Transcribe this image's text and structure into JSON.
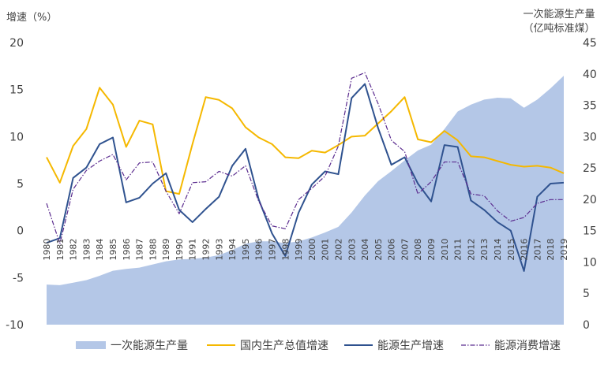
{
  "chart_data": {
    "type": "line",
    "left_axis_title": "增速（%）",
    "right_axis_title_line1": "一次能源生产量",
    "right_axis_title_line2": "（亿吨标准煤）",
    "y_left_range": [
      -10,
      20
    ],
    "y_left_ticks": [
      "-10",
      "-5",
      "0",
      "5",
      "10",
      "15",
      "20"
    ],
    "y_right_range": [
      0,
      45
    ],
    "y_right_ticks": [
      "0",
      "5",
      "10",
      "15",
      "20",
      "25",
      "30",
      "35",
      "40",
      "45"
    ],
    "x": [
      "1980",
      "1981",
      "1982",
      "1983",
      "1984",
      "1985",
      "1986",
      "1987",
      "1988",
      "1989",
      "1990",
      "1991",
      "1992",
      "1993",
      "1994",
      "1995",
      "1996",
      "1997",
      "1998",
      "1999",
      "2000",
      "2001",
      "2002",
      "2003",
      "2004",
      "2005",
      "2006",
      "2007",
      "2008",
      "2009",
      "2010",
      "2011",
      "2012",
      "2013",
      "2014",
      "2015",
      "2016",
      "2017",
      "2018",
      "2019"
    ],
    "grid": false,
    "legend_position": "bottom",
    "series": [
      {
        "name": "一次能源生产量",
        "type": "area",
        "axis": "right",
        "color": "#b4c7e7",
        "values": [
          6.4,
          6.3,
          6.7,
          7.1,
          7.8,
          8.6,
          8.9,
          9.1,
          9.6,
          10.1,
          10.4,
          10.5,
          10.7,
          11.1,
          11.9,
          12.9,
          13.3,
          13.3,
          13.0,
          13.3,
          13.9,
          14.7,
          15.6,
          17.9,
          20.6,
          22.9,
          24.5,
          26.2,
          27.8,
          28.7,
          31.2,
          34.0,
          35.1,
          35.9,
          36.2,
          36.1,
          34.6,
          35.9,
          37.7,
          39.7
        ]
      },
      {
        "name": "国内生产总值增速",
        "type": "line",
        "axis": "left",
        "color": "#f5b800",
        "values": [
          7.8,
          5.1,
          9.0,
          10.8,
          15.2,
          13.4,
          8.9,
          11.7,
          11.3,
          4.2,
          3.9,
          9.2,
          14.2,
          13.9,
          13.0,
          11.0,
          9.9,
          9.2,
          7.8,
          7.7,
          8.5,
          8.3,
          9.1,
          10.0,
          10.1,
          11.4,
          12.7,
          14.2,
          9.7,
          9.4,
          10.6,
          9.6,
          7.9,
          7.8,
          7.4,
          7.0,
          6.8,
          6.9,
          6.7,
          6.1
        ]
      },
      {
        "name": "能源生产增速",
        "type": "line",
        "axis": "left",
        "color": "#2f528f",
        "values": [
          -1.3,
          -0.8,
          5.6,
          6.7,
          9.2,
          9.9,
          3.0,
          3.5,
          5.0,
          6.1,
          2.2,
          0.9,
          2.3,
          3.6,
          6.9,
          8.7,
          3.3,
          -0.3,
          -2.7,
          1.9,
          4.9,
          6.3,
          6.0,
          14.1,
          15.6,
          10.9,
          7.0,
          7.8,
          5.0,
          3.1,
          9.1,
          8.9,
          3.2,
          2.2,
          0.9,
          0.0,
          -4.3,
          3.6,
          5.0,
          5.1
        ]
      },
      {
        "name": "能源消费增速",
        "type": "line",
        "axis": "left",
        "color": "#5b2c8f",
        "dashed": true,
        "values": [
          2.9,
          -1.4,
          4.4,
          6.4,
          7.4,
          8.1,
          5.4,
          7.2,
          7.3,
          4.2,
          1.8,
          5.1,
          5.2,
          6.3,
          5.8,
          6.9,
          3.1,
          0.5,
          0.2,
          3.3,
          4.5,
          5.8,
          9.0,
          16.2,
          16.8,
          13.5,
          9.6,
          8.4,
          3.9,
          5.2,
          7.3,
          7.3,
          3.9,
          3.7,
          2.1,
          1.0,
          1.4,
          2.9,
          3.3,
          3.3
        ]
      }
    ]
  }
}
